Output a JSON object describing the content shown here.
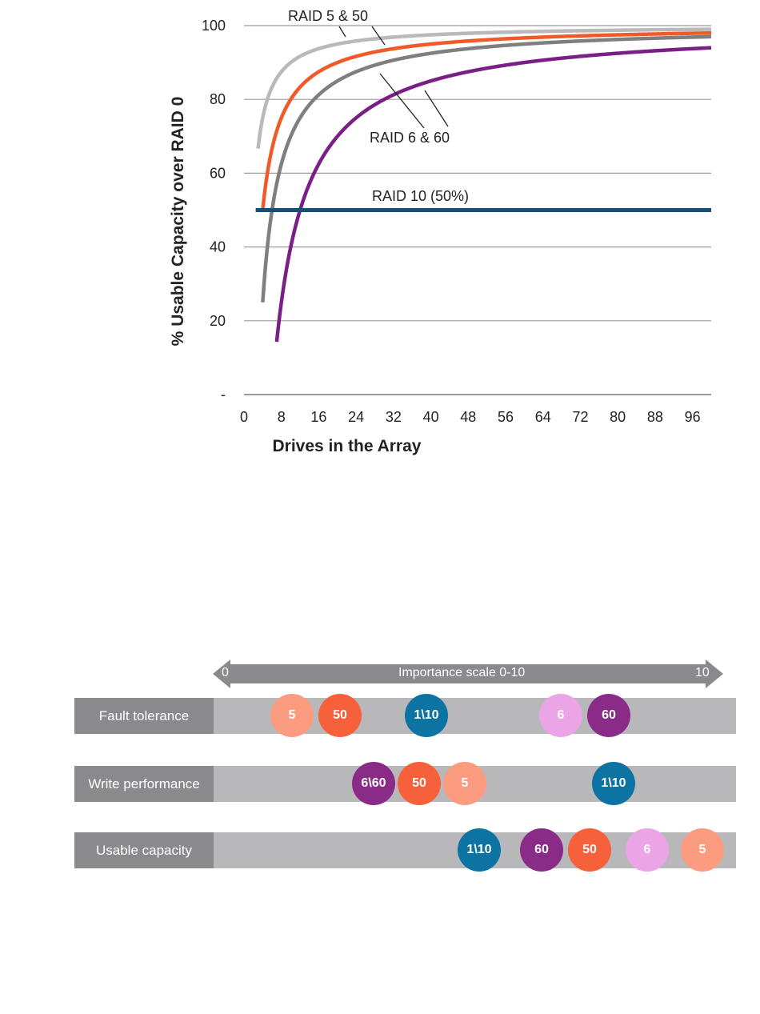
{
  "chart_data": [
    {
      "type": "line",
      "title": "",
      "xlabel": "Drives in the Array",
      "ylabel": "% Usable Capacity  over RAID 0",
      "xlim": [
        0,
        100
      ],
      "ylim": [
        0,
        100
      ],
      "x_ticks": [
        "0",
        "8",
        "16",
        "24",
        "32",
        "40",
        "48",
        "56",
        "64",
        "72",
        "80",
        "88",
        "96"
      ],
      "y_ticks": [
        {
          "value": 100,
          "label": "100"
        },
        {
          "value": 80,
          "label": "80"
        },
        {
          "value": 60,
          "label": "60"
        },
        {
          "value": 40,
          "label": "40"
        },
        {
          "value": 20,
          "label": "20"
        },
        {
          "value": 0,
          "label": "-"
        }
      ],
      "grid": true,
      "series": [
        {
          "name": "RAID 5 & 50",
          "formula": "(n-1)/n",
          "x_start": 3,
          "x_end": 100,
          "color": "#b9b9b9"
        },
        {
          "name": "RAID 5 & 50",
          "formula": "(n-2)/n",
          "x_start": 4,
          "x_end": 100,
          "color": "#f05a28"
        },
        {
          "name": "RAID 6 & 60",
          "formula": "(n-3)/n",
          "x_start": 4,
          "x_end": 100,
          "color": "#7f7f7f"
        },
        {
          "name": "RAID 6 & 60",
          "formula": "(n-6)/n",
          "x_start": 7,
          "x_end": 100,
          "color": "#7a1f86"
        },
        {
          "name": "RAID 10 (50%)",
          "constant": 50,
          "x_start": 2.5,
          "x_end": 100,
          "color": "#1a4d73"
        }
      ],
      "annotations": [
        "RAID 5 & 50",
        "RAID 6 & 60",
        "RAID 10 (50%)"
      ]
    },
    {
      "type": "dot-scale",
      "scale_label": "Importance scale 0-10",
      "scale_min_label": "0",
      "scale_max_label": "10",
      "range": [
        0,
        10
      ],
      "rows": [
        {
          "label": "Fault tolerance",
          "points": [
            {
              "label": "5",
              "value": 1.4,
              "color": "#fb9c80"
            },
            {
              "label": "50",
              "value": 2.4,
              "color": "#f6603b"
            },
            {
              "label": "1\\10",
              "value": 4.2,
              "color": "#0c73a3"
            },
            {
              "label": "6",
              "value": 7.0,
              "color": "#eba4e6"
            },
            {
              "label": "60",
              "value": 8.0,
              "color": "#8a2b88"
            }
          ]
        },
        {
          "label": "Write performance",
          "points": [
            {
              "label": "6\\60",
              "value": 3.1,
              "color": "#8a2b88"
            },
            {
              "label": "50",
              "value": 4.05,
              "color": "#f6603b"
            },
            {
              "label": "5",
              "value": 5.0,
              "color": "#fb9c80"
            },
            {
              "label": "1\\10",
              "value": 8.1,
              "color": "#0c73a3"
            }
          ]
        },
        {
          "label": "Usable capacity",
          "points": [
            {
              "label": "1\\10",
              "value": 5.3,
              "color": "#0c73a3"
            },
            {
              "label": "60",
              "value": 6.6,
              "color": "#8a2b88"
            },
            {
              "label": "50",
              "value": 7.6,
              "color": "#f6603b"
            },
            {
              "label": "6",
              "value": 8.8,
              "color": "#eba4e6"
            },
            {
              "label": "5",
              "value": 9.95,
              "color": "#fb9c80"
            }
          ]
        }
      ]
    }
  ]
}
